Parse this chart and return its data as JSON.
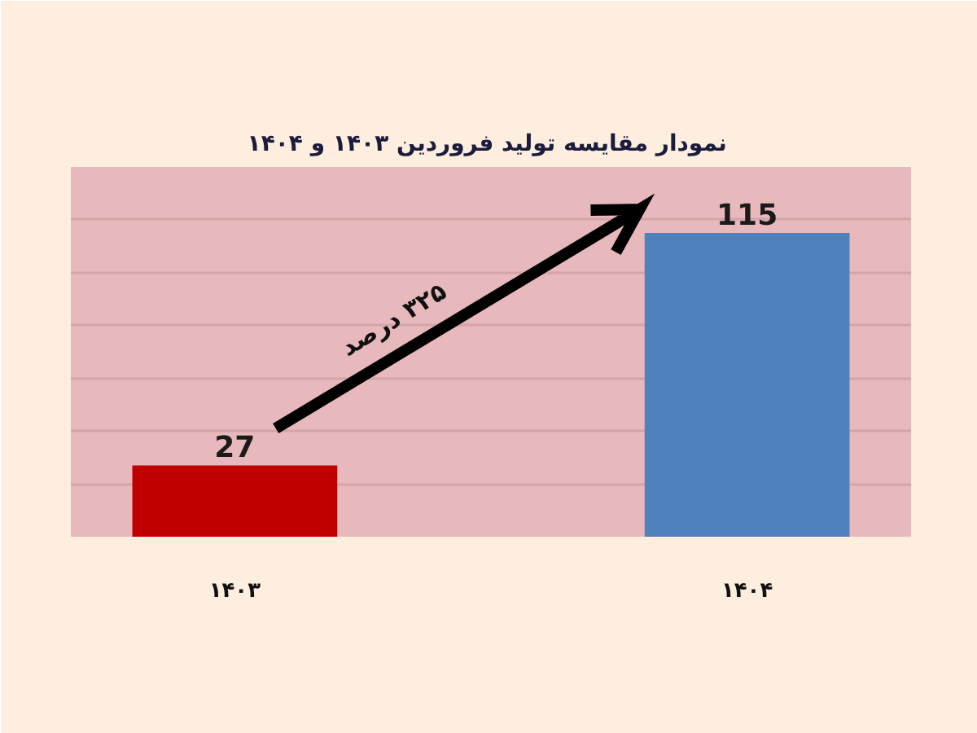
{
  "chart_data": {
    "type": "bar",
    "title": "نمودار  مقایسه تولید فروردین ۱۴۰۳ و ۱۴۰۴",
    "categories": [
      "۱۴۰۳",
      "۱۴۰۴"
    ],
    "values": [
      27,
      115
    ],
    "colors": [
      "#c00000",
      "#4f81bd"
    ],
    "ylim": [
      0,
      140
    ],
    "yticks": [
      {
        "value": 20,
        "label": null
      },
      {
        "value": 40,
        "label": null
      },
      {
        "value": 60,
        "label": null
      },
      {
        "value": 80,
        "label": null
      },
      {
        "value": 100,
        "label": null
      },
      {
        "value": 120,
        "label": null
      }
    ],
    "grid": "y",
    "tick_labels": "x",
    "data_labels": true,
    "annotations": [
      "۳۲۵ درصد"
    ]
  }
}
